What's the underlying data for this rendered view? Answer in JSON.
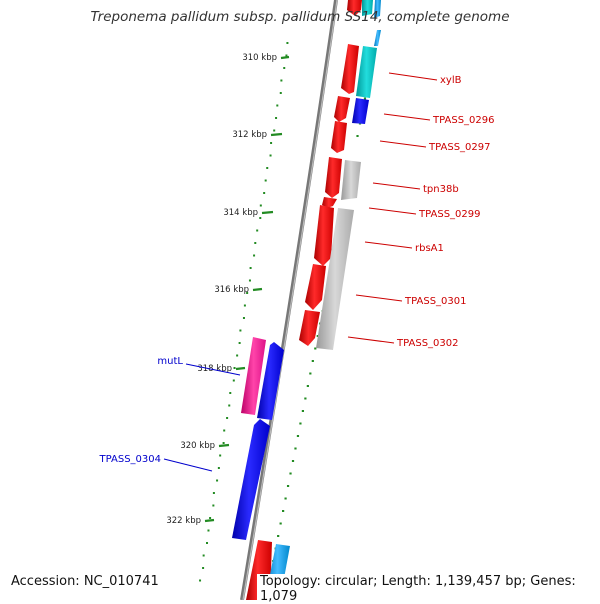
{
  "title": "Treponema pallidum subsp. pallidum SS14, complete genome",
  "footer": {
    "accession": "Accession: NC_010741",
    "summary": "Topology: circular; Length: 1,139,457 bp; Genes: 1,079"
  },
  "ticks": [
    {
      "label": "310 kbp"
    },
    {
      "label": "312 kbp"
    },
    {
      "label": "314 kbp"
    },
    {
      "label": "316 kbp"
    },
    {
      "label": "318 kbp"
    },
    {
      "label": "320 kbp"
    },
    {
      "label": "322 kbp"
    }
  ],
  "gene_labels": [
    {
      "name": "xylB",
      "side": "right"
    },
    {
      "name": "TPASS_0296",
      "side": "right"
    },
    {
      "name": "TPASS_0297",
      "side": "right"
    },
    {
      "name": "tpn38b",
      "side": "right"
    },
    {
      "name": "TPASS_0299",
      "side": "right"
    },
    {
      "name": "rbsA1",
      "side": "right"
    },
    {
      "name": "TPASS_0301",
      "side": "right"
    },
    {
      "name": "TPASS_0302",
      "side": "right"
    },
    {
      "name": "mutL",
      "side": "left"
    },
    {
      "name": "TPASS_0304",
      "side": "left"
    }
  ],
  "colors": {
    "forward_cds": "#ff0000",
    "reverse_cds": "#0000ee",
    "backbone": "#888888",
    "tick": "#228b22",
    "label_right": "#cc0000",
    "label_left": "#0000cc",
    "cyan_feature": "#00cccc",
    "grey_feature": "#bbbbbb",
    "pink_feature": "#ff2299"
  }
}
